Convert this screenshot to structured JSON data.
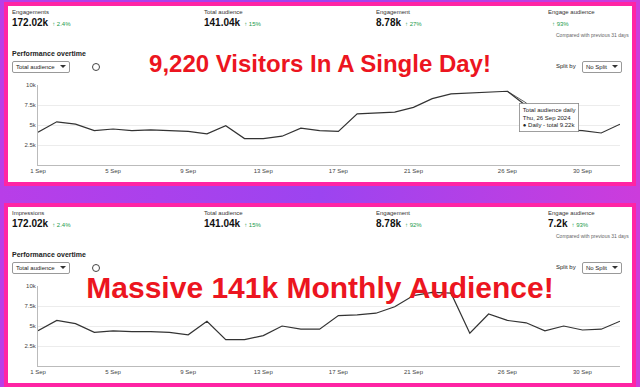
{
  "chart_data": [
    {
      "type": "line",
      "title": "9,220 Visitors In A Single Day!",
      "subtitle": "Performance overtime",
      "stats": [
        {
          "label": "Engagements",
          "value": "172.02k",
          "change": "↑ 2.4%"
        },
        {
          "label": "Total audience",
          "value": "141.04k",
          "change": "↑ 15%"
        },
        {
          "label": "Engagement",
          "value": "8.78k",
          "change": "↑ 27%"
        },
        {
          "label": "Engage audience",
          "change": "↑ 93%"
        }
      ],
      "note": "Compared with previous 31 days",
      "controls": {
        "metric": "Total audience",
        "split_label": "Split by",
        "split": "No Split"
      },
      "categories": [
        "1 Sep",
        null,
        null,
        null,
        "5 Sep",
        null,
        null,
        null,
        "9 Sep",
        null,
        null,
        null,
        "13 Sep",
        null,
        null,
        null,
        "17 Sep",
        null,
        null,
        null,
        "21 Sep",
        null,
        null,
        null,
        null,
        "26 Sep",
        null,
        null,
        null,
        "30 Sep",
        null,
        null
      ],
      "values": [
        4100,
        5400,
        5100,
        4300,
        4500,
        4300,
        4400,
        4300,
        4200,
        3900,
        4900,
        3300,
        3300,
        3600,
        4600,
        4300,
        4200,
        6400,
        6500,
        6600,
        7200,
        8300,
        8900,
        9000,
        9100,
        9220,
        7400,
        4900,
        4400,
        4300,
        4000,
        5100
      ],
      "color": "#333333",
      "line_style": "solid",
      "ylim": [
        0,
        10000
      ],
      "yticks": [
        {
          "value": 2500,
          "label": "2.5k"
        },
        {
          "value": 5000,
          "label": "5k"
        },
        {
          "value": 7500,
          "label": "7.5k"
        },
        {
          "value": 10000,
          "label": "10k"
        }
      ],
      "grid": true,
      "annotations": [
        {
          "at": "26 Sep",
          "lines": [
            "Total audience daily",
            "Thu, 26 Sep 2024",
            "● Daily - total 9.22k"
          ]
        }
      ]
    },
    {
      "type": "line",
      "title": "Massive 141k Monthly Audience!",
      "subtitle": "Performance overtime",
      "stats": [
        {
          "label": "Impressions",
          "value": "172.02k",
          "change": "↑ 2.4%"
        },
        {
          "label": "Total audience",
          "value": "141.04k",
          "change": "↑ 15%"
        },
        {
          "label": "Engagement",
          "value": "8.78k",
          "change": "↑ 92%"
        },
        {
          "label": "Engage audience",
          "value": "7.2k",
          "change": "↑ 93%"
        }
      ],
      "note": "Compared with previous 31 days",
      "controls": {
        "metric": "Total audience",
        "split_label": "Split by",
        "split": "No Split"
      },
      "categories": [
        "1 Sep",
        null,
        null,
        null,
        "5 Sep",
        null,
        null,
        null,
        "9 Sep",
        null,
        null,
        null,
        "13 Sep",
        null,
        null,
        null,
        "17 Sep",
        null,
        null,
        null,
        "21 Sep",
        null,
        null,
        null,
        null,
        "26 Sep",
        null,
        null,
        null,
        "30 Sep",
        null,
        null
      ],
      "values": [
        4400,
        5700,
        5300,
        4200,
        4400,
        4300,
        4300,
        4200,
        3900,
        5600,
        3300,
        3300,
        3800,
        5000,
        4600,
        4600,
        6300,
        6400,
        6600,
        7400,
        8800,
        9200,
        9100,
        4100,
        6500,
        5700,
        5400,
        4400,
        5000,
        4500,
        4600,
        5600
      ],
      "color": "#333333",
      "line_style": "solid",
      "ylim": [
        0,
        10000
      ],
      "yticks": [
        {
          "value": 2500,
          "label": "2.5k"
        },
        {
          "value": 5000,
          "label": "5k"
        },
        {
          "value": 7500,
          "label": "7.5k"
        },
        {
          "value": 10000,
          "label": "10k"
        }
      ],
      "grid": true
    }
  ]
}
